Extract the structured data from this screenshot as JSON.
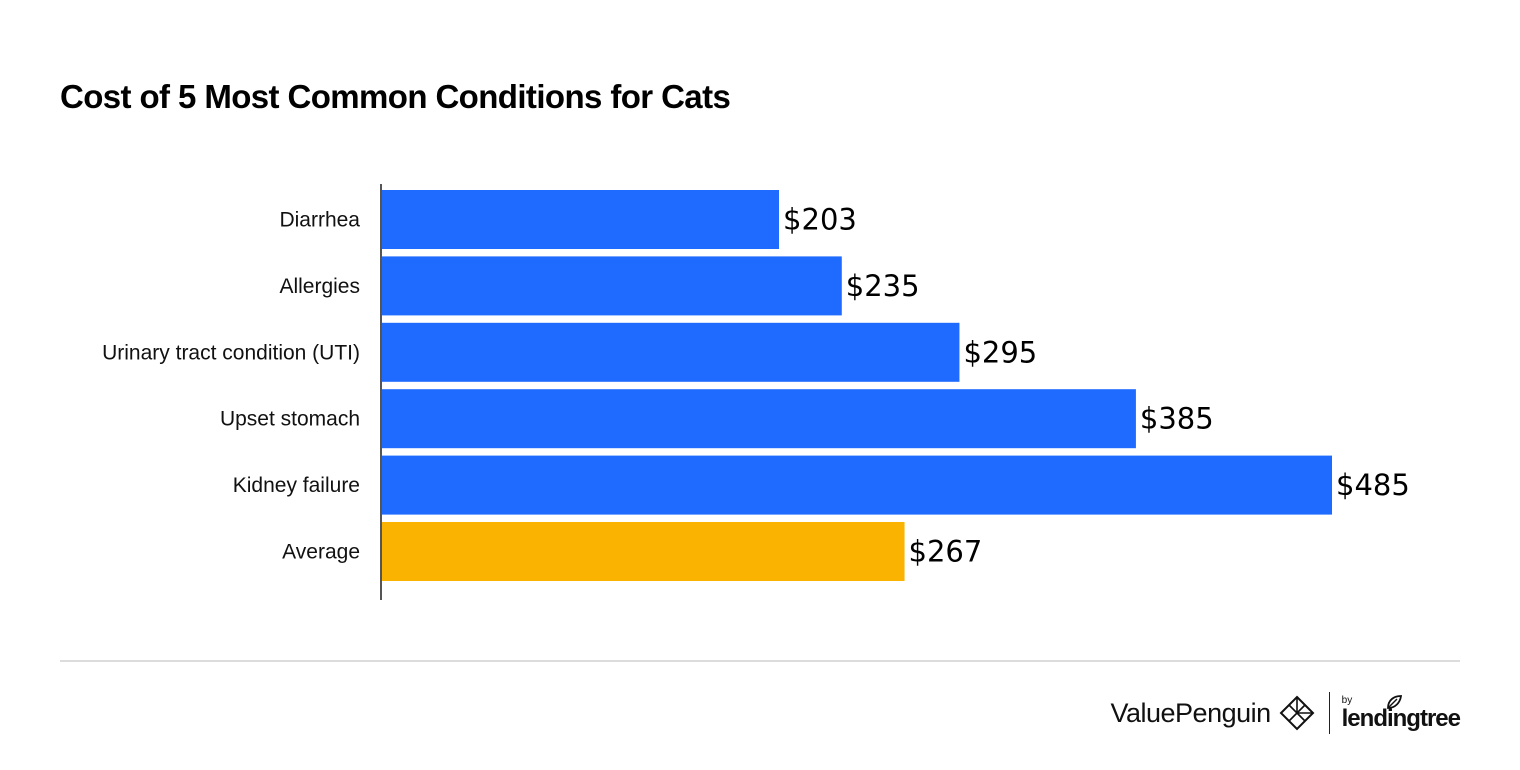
{
  "title": "Cost of 5 Most Common Conditions for Cats",
  "chart_data": {
    "type": "bar",
    "orientation": "horizontal",
    "title": "Cost of 5 Most Common Conditions for Cats",
    "xlabel": "",
    "ylabel": "",
    "xlim": [
      0,
      500
    ],
    "grid": false,
    "categories": [
      "Diarrhea",
      "Allergies",
      "Urinary tract condition (UTI)",
      "Upset stomach",
      "Kidney failure",
      "Average"
    ],
    "values": [
      203,
      235,
      295,
      385,
      485,
      267
    ],
    "value_labels": [
      "$203",
      "$235",
      "$295",
      "$385",
      "$485",
      "$267"
    ],
    "colors": [
      "#1F6BFF",
      "#1F6BFF",
      "#1F6BFF",
      "#1F6BFF",
      "#1F6BFF",
      "#F9B300"
    ]
  },
  "colors": {
    "bar_blue": "#1F6BFF",
    "bar_average": "#F9B300",
    "axis": "#555555",
    "divider": "#dcdcdc"
  },
  "footer": {
    "brand": "ValuePenguin",
    "brand_icon": "valuepenguin-diamond-icon",
    "by": "by",
    "partner": "lendingtree",
    "partner_icon": "lendingtree-leaf-icon"
  }
}
